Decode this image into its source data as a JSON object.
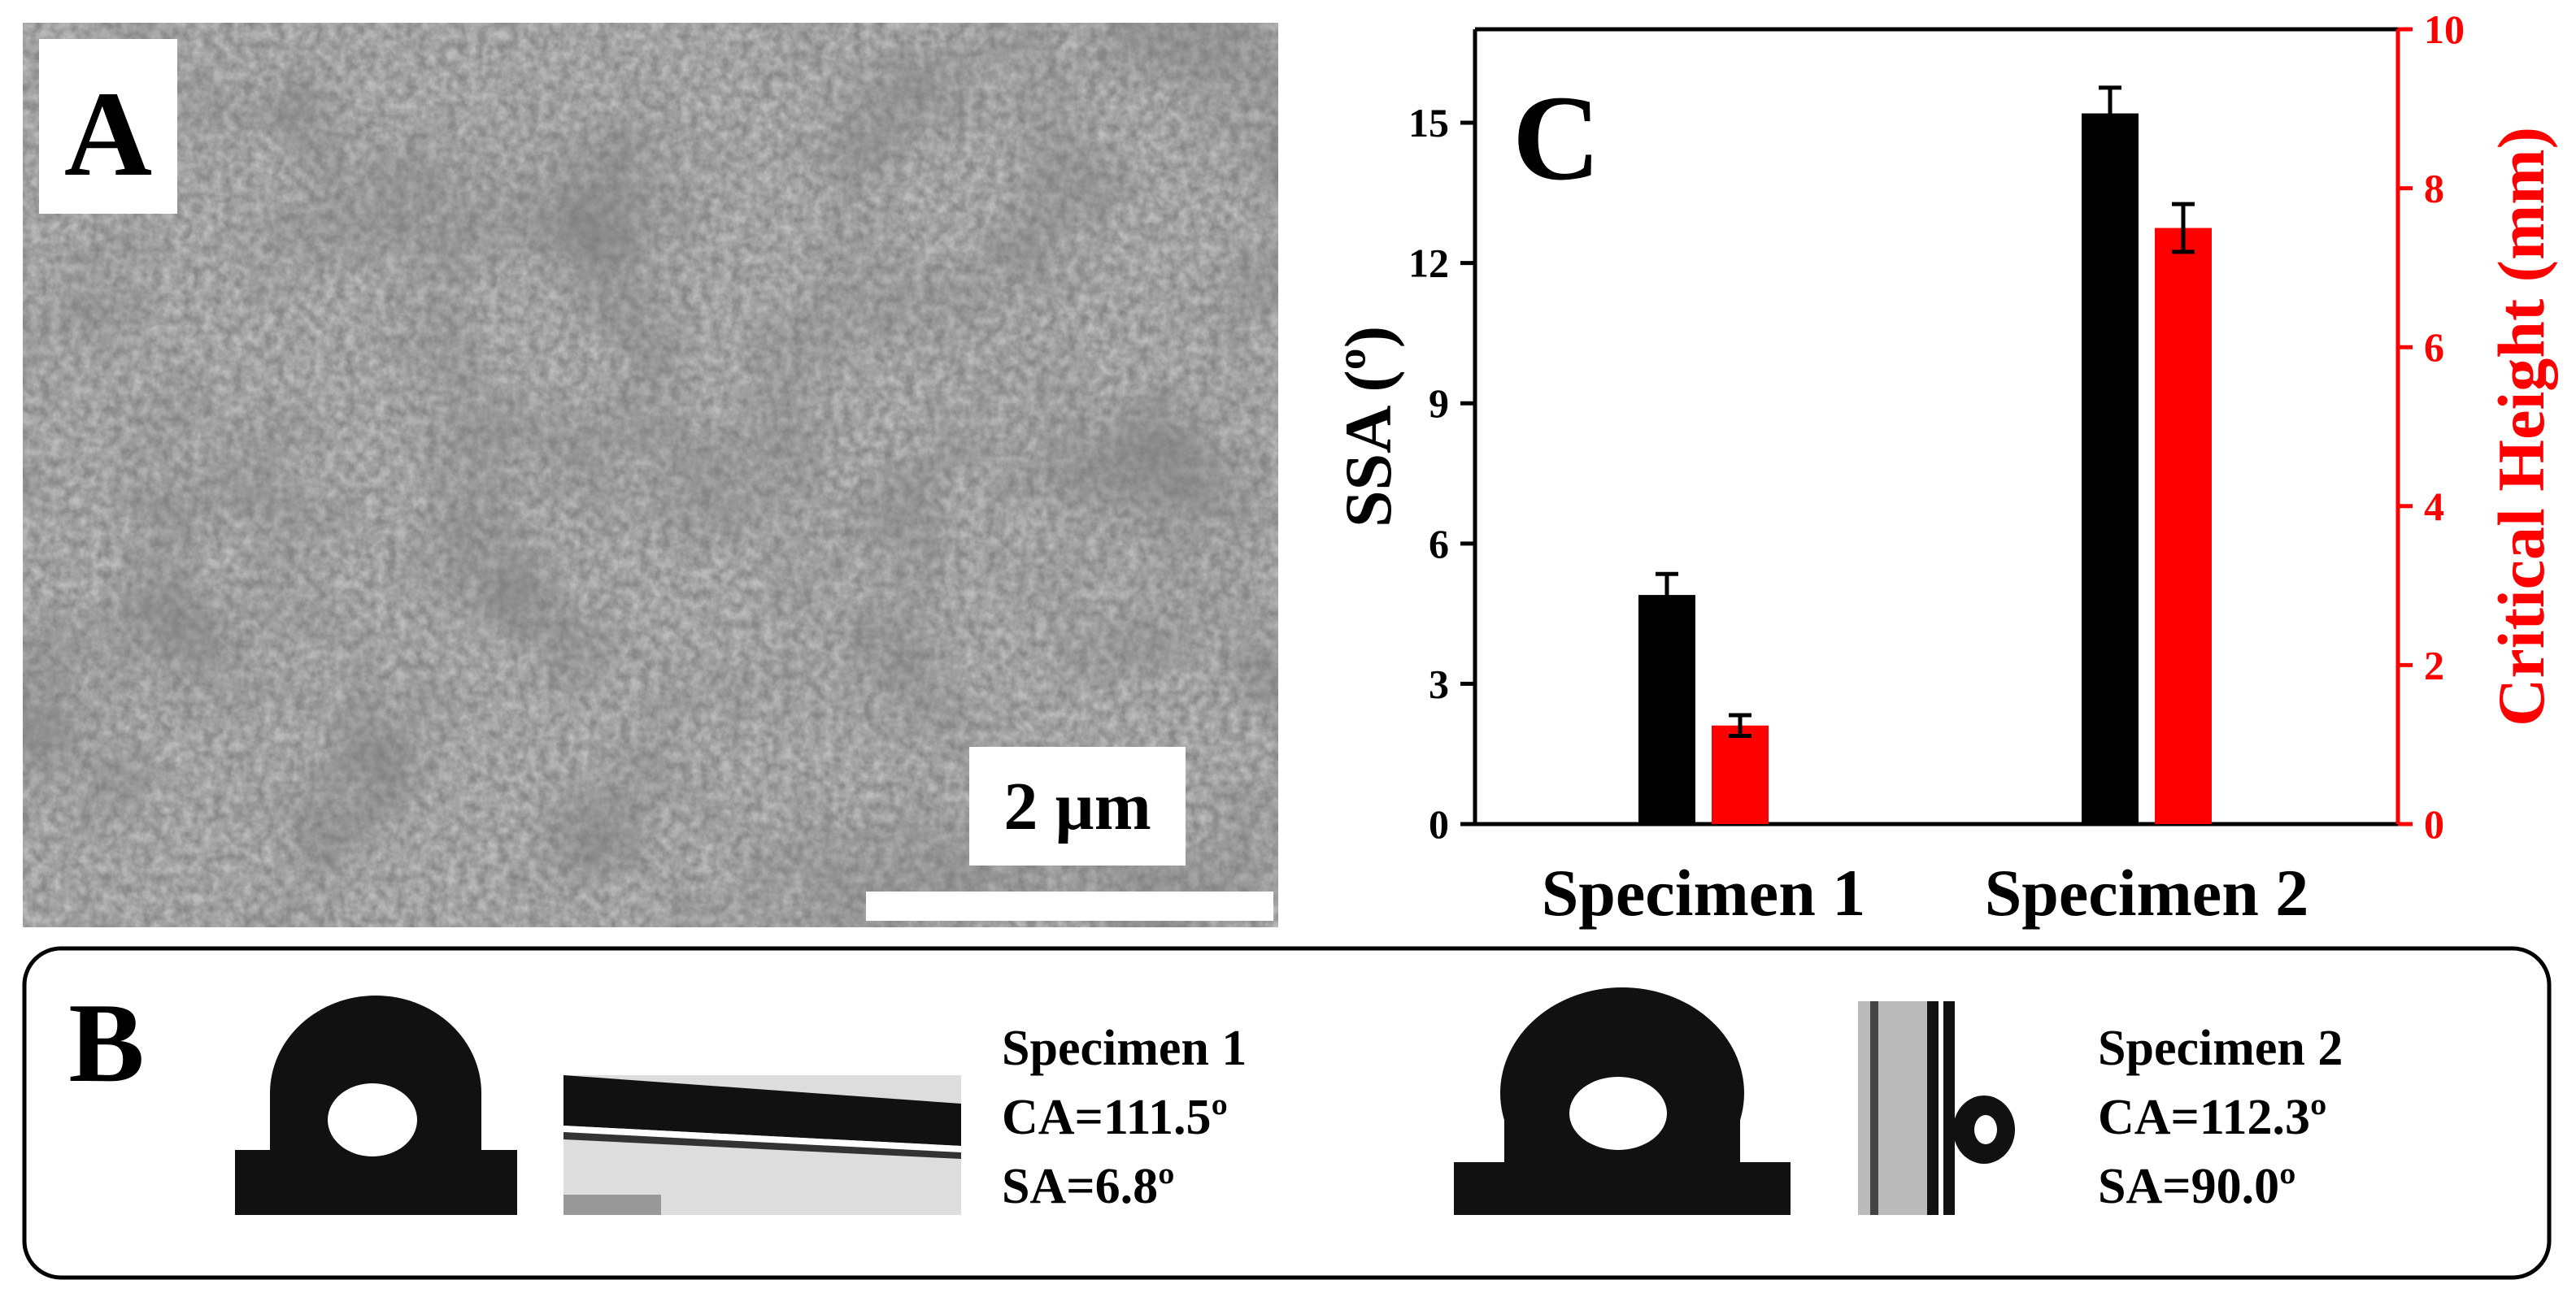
{
  "panel_a": {
    "label": "A",
    "scale_bar": "2 µm"
  },
  "panel_b": {
    "label": "B",
    "specimens": [
      {
        "name": "Specimen 1",
        "ca": "CA=111.5º",
        "sa": "SA=6.8º"
      },
      {
        "name": "Specimen 2",
        "ca": "CA=112.3º",
        "sa": "SA=90.0º"
      }
    ]
  },
  "chart_data": {
    "type": "bar",
    "annotation": "C",
    "y_label": "SSA (º)",
    "y2_label": "Critical Height (mm)",
    "categories": [
      "Specimen 1",
      "Specimen 2"
    ],
    "series": [
      {
        "name": "SSA",
        "color": "#000000",
        "values": [
          4.9,
          15.2
        ],
        "errors": [
          0.45,
          0.55
        ]
      },
      {
        "name": "Critical Height",
        "color": "#ff0000",
        "axis": "y2",
        "values": [
          1.24,
          7.5
        ],
        "errors": [
          0.13,
          0.3
        ]
      }
    ],
    "ylim": [
      0,
      17
    ],
    "yticks": [
      0,
      3,
      6,
      9,
      12,
      15
    ],
    "y2lim": [
      0,
      10
    ],
    "y2ticks": [
      0,
      2,
      4,
      6,
      8,
      10
    ],
    "y2_color": "#ff0000"
  }
}
